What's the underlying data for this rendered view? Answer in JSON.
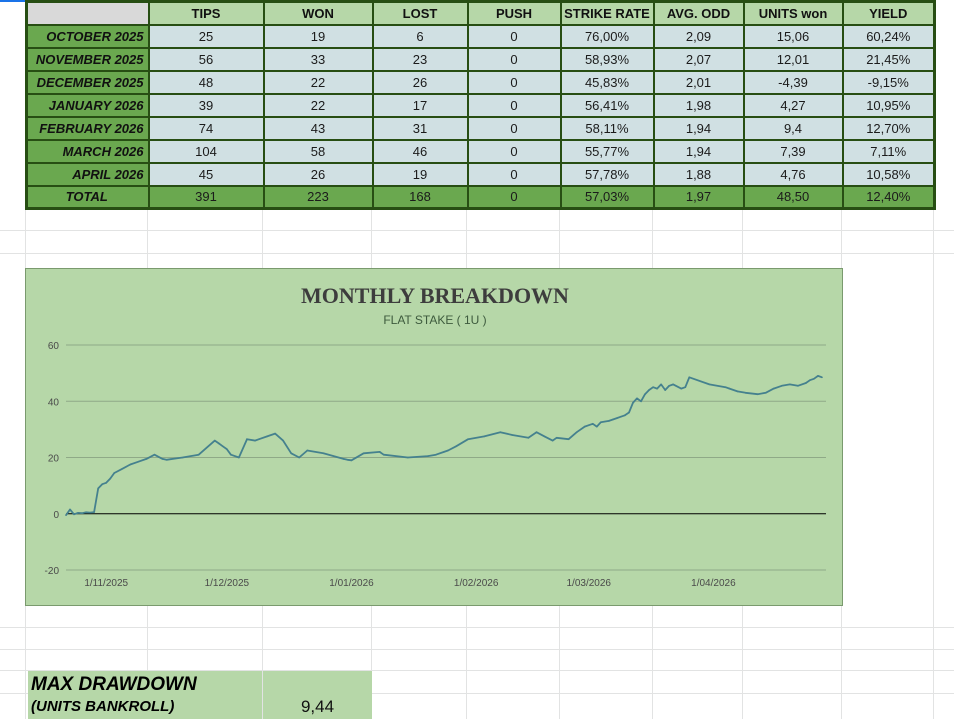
{
  "table": {
    "headers": [
      "",
      "TIPS",
      "WON",
      "LOST",
      "PUSH",
      "STRIKE RATE",
      "AVG. ODD",
      "UNITS won",
      "YIELD"
    ],
    "rows": [
      [
        "OCTOBER 2025",
        "25",
        "19",
        "6",
        "0",
        "76,00%",
        "2,09",
        "15,06",
        "60,24%"
      ],
      [
        "NOVEMBER 2025",
        "56",
        "33",
        "23",
        "0",
        "58,93%",
        "2,07",
        "12,01",
        "21,45%"
      ],
      [
        "DECEMBER 2025",
        "48",
        "22",
        "26",
        "0",
        "45,83%",
        "2,01",
        "-4,39",
        "-9,15%"
      ],
      [
        "JANUARY 2026",
        "39",
        "22",
        "17",
        "0",
        "56,41%",
        "1,98",
        "4,27",
        "10,95%"
      ],
      [
        "FEBRUARY 2026",
        "74",
        "43",
        "31",
        "0",
        "58,11%",
        "1,94",
        "9,4",
        "12,70%"
      ],
      [
        "MARCH 2026",
        "104",
        "58",
        "46",
        "0",
        "55,77%",
        "1,94",
        "7,39",
        "7,11%"
      ],
      [
        "APRIL 2026",
        "45",
        "26",
        "19",
        "0",
        "57,78%",
        "1,88",
        "4,76",
        "10,58%"
      ]
    ],
    "total": [
      "TOTAL",
      "391",
      "223",
      "168",
      "0",
      "57,03%",
      "1,97",
      "48,50",
      "12,40%"
    ]
  },
  "chart_data": {
    "type": "line",
    "title": "MONTHLY BREAKDOWN",
    "subtitle": "FLAT STAKE ( 1U )",
    "xlabel": "",
    "ylabel": "",
    "ylim": [
      -20,
      60
    ],
    "yticks": [
      60,
      40,
      20,
      0,
      -20
    ],
    "xlim": [
      "2025-10-22",
      "2026-04-29"
    ],
    "xticks": [
      "1/11/2025",
      "1/12/2025",
      "1/01/2026",
      "1/02/2026",
      "1/03/2026",
      "1/04/2026"
    ],
    "grid": true,
    "legend": "none",
    "line_color": "#45818e",
    "series": [
      {
        "x": [
          "2025-10-22",
          "2025-10-23",
          "2025-10-24",
          "2025-10-25",
          "2025-10-26",
          "2025-10-27",
          "2025-10-28",
          "2025-10-29",
          "2025-10-30",
          "2025-10-31",
          "2025-11-01",
          "2025-11-02",
          "2025-11-03",
          "2025-11-05",
          "2025-11-07",
          "2025-11-09",
          "2025-11-11",
          "2025-11-13",
          "2025-11-15",
          "2025-11-16",
          "2025-11-17",
          "2025-11-18",
          "2025-11-20",
          "2025-11-24",
          "2025-11-28",
          "2025-11-29",
          "2025-11-30",
          "2025-12-01",
          "2025-12-02",
          "2025-12-04",
          "2025-12-06",
          "2025-12-08",
          "2025-12-09",
          "2025-12-11",
          "2025-12-13",
          "2025-12-15",
          "2025-12-17",
          "2025-12-19",
          "2025-12-21",
          "2025-12-25",
          "2025-12-30",
          "2025-12-31",
          "2026-01-01",
          "2026-01-04",
          "2026-01-08",
          "2026-01-09",
          "2026-01-15",
          "2026-01-20",
          "2026-01-22",
          "2026-01-24",
          "2026-01-25",
          "2026-01-27",
          "2026-01-30",
          "2026-02-03",
          "2026-02-07",
          "2026-02-10",
          "2026-02-14",
          "2026-02-16",
          "2026-02-18",
          "2026-02-20",
          "2026-02-21",
          "2026-02-24",
          "2026-02-26",
          "2026-02-28",
          "2026-03-01",
          "2026-03-02",
          "2026-03-03",
          "2026-03-04",
          "2026-03-06",
          "2026-03-07",
          "2026-03-08",
          "2026-03-09",
          "2026-03-10",
          "2026-03-11",
          "2026-03-12",
          "2026-03-13",
          "2026-03-14",
          "2026-03-15",
          "2026-03-16",
          "2026-03-17",
          "2026-03-18",
          "2026-03-19",
          "2026-03-20",
          "2026-03-21",
          "2026-03-22",
          "2026-03-24",
          "2026-03-25",
          "2026-03-26",
          "2026-03-31",
          "2026-04-04",
          "2026-04-05",
          "2026-04-07",
          "2026-04-09",
          "2026-04-12",
          "2026-04-14",
          "2026-04-16",
          "2026-04-18",
          "2026-04-20",
          "2026-04-22",
          "2026-04-24",
          "2026-04-25",
          "2026-04-26",
          "2026-04-27",
          "2026-04-28"
        ],
        "y": [
          -0.5,
          1.5,
          -0.2,
          0.3,
          0.2,
          0.5,
          0.4,
          0.6,
          9,
          10.5,
          11,
          12.5,
          14.5,
          16,
          17.5,
          18.5,
          19.5,
          21,
          19.5,
          19.2,
          19.4,
          19.6,
          20,
          21,
          26,
          25,
          24,
          23,
          21,
          20,
          26.5,
          26,
          26.5,
          27.5,
          28.5,
          26,
          21.5,
          20,
          22.5,
          21.5,
          19.5,
          19.2,
          19,
          21.5,
          22,
          21,
          20,
          20.5,
          21,
          22,
          22.5,
          24,
          26.5,
          27.5,
          29,
          28,
          27,
          29,
          27.5,
          26,
          27,
          26.5,
          29,
          31,
          31.5,
          32,
          31,
          32.5,
          33,
          33.5,
          34,
          34.5,
          35,
          36,
          39.5,
          41,
          40,
          42.5,
          44,
          45,
          44.5,
          46,
          44,
          45.5,
          46,
          44.5,
          45,
          48.5,
          46,
          45,
          44.5,
          43.5,
          43,
          42.5,
          43,
          44.5,
          45.5,
          46,
          45.5,
          46.5,
          47.5,
          48,
          49,
          48.5
        ]
      }
    ]
  },
  "drawdown": {
    "title": "MAX DRAWDOWN",
    "subtitle": "(UNITS BANKROLL)",
    "value": "9,44"
  }
}
